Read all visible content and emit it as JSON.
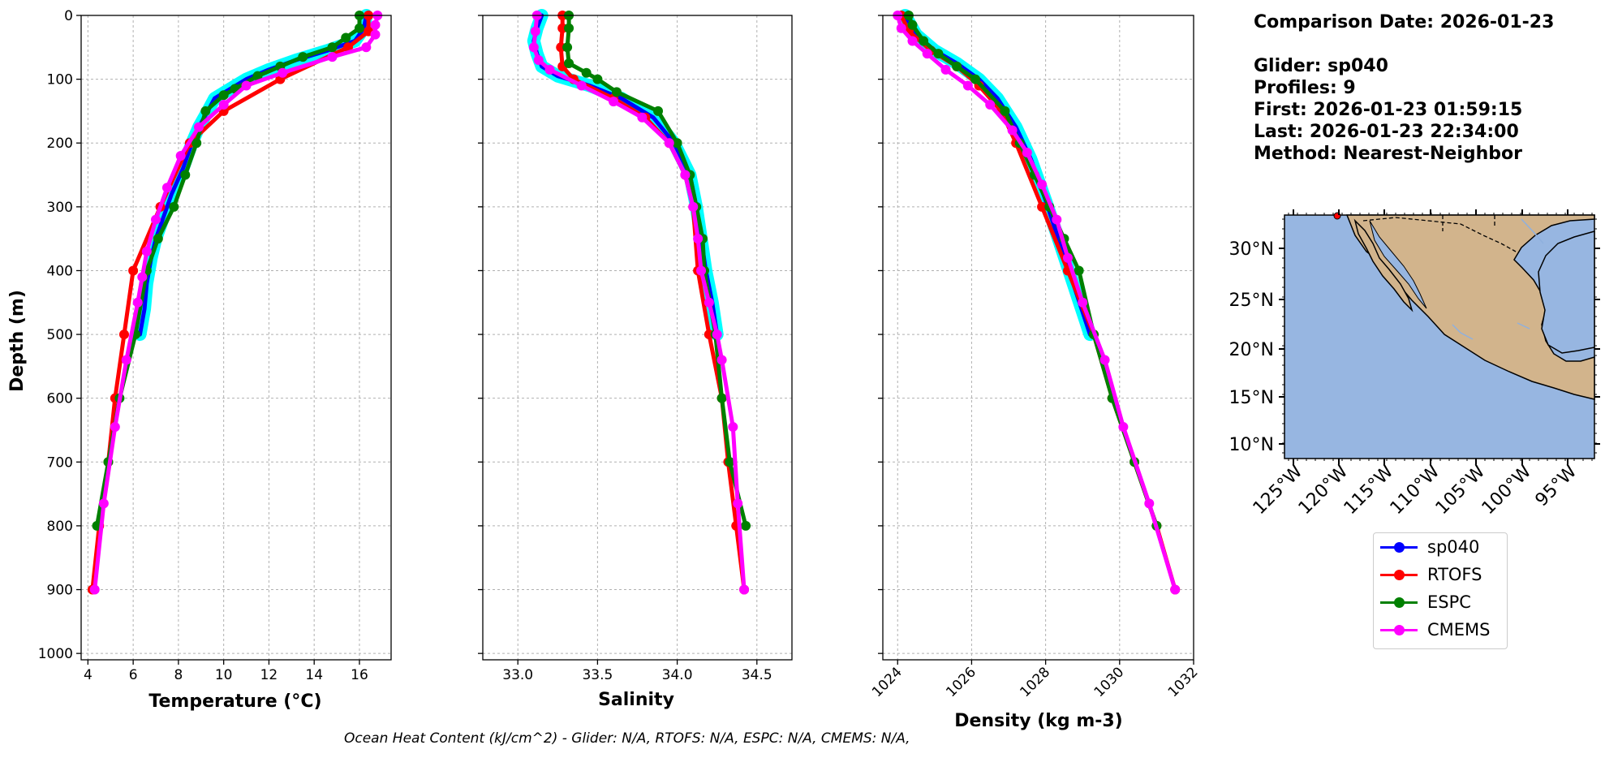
{
  "info": {
    "comparison_date": "Comparison Date: 2026-01-23",
    "glider": "Glider: sp040",
    "profiles": "Profiles: 9",
    "first": "First: 2026-01-23 01:59:15",
    "last": "Last: 2026-01-23 22:34:00",
    "method": "Method: Nearest-Neighbor"
  },
  "footer": "Ocean Heat Content (kJ/cm^2) - Glider: N/A,  RTOFS: N/A,  ESPC: N/A,  CMEMS: N/A,",
  "legend": [
    {
      "name": "sp040",
      "color": "#0000ff"
    },
    {
      "name": "RTOFS",
      "color": "#ff0000"
    },
    {
      "name": "ESPC",
      "color": "#008000"
    },
    {
      "name": "CMEMS",
      "color": "#ff00ff"
    }
  ],
  "map": {
    "lat_ticks": [
      "30°N",
      "25°N",
      "20°N",
      "15°N",
      "10°N"
    ],
    "lon_ticks": [
      "125°W",
      "120°W",
      "115°W",
      "110°W",
      "105°W",
      "100°W",
      "95°W"
    ],
    "ocean_color": "#97b6e1",
    "land_color": "#d2b48c",
    "glider_marker_color": "#ff0000"
  },
  "chart_data": [
    {
      "type": "line",
      "xlabel": "Temperature (°C)",
      "ylabel": "Depth (m)",
      "xlim": [
        3.7,
        17.4
      ],
      "ylim": [
        1010,
        0
      ],
      "xticks": [
        4,
        6,
        8,
        10,
        12,
        14,
        16
      ],
      "yticks": [
        0,
        100,
        200,
        300,
        400,
        500,
        600,
        700,
        800,
        900,
        1000
      ],
      "grid": true,
      "series": [
        {
          "name": "sp040",
          "color": "#0000ff",
          "band_color": "#00ffff",
          "marker": false,
          "points": [
            [
              16.3,
              0
            ],
            [
              16.2,
              20
            ],
            [
              15.8,
              40
            ],
            [
              14.6,
              55
            ],
            [
              13.2,
              70
            ],
            [
              12.0,
              85
            ],
            [
              11.0,
              100
            ],
            [
              10.3,
              115
            ],
            [
              9.6,
              130
            ],
            [
              9.3,
              150
            ],
            [
              8.9,
              175
            ],
            [
              8.6,
              200
            ],
            [
              8.2,
              240
            ],
            [
              7.7,
              280
            ],
            [
              7.3,
              320
            ],
            [
              7.0,
              350
            ],
            [
              6.8,
              380
            ],
            [
              6.6,
              420
            ],
            [
              6.5,
              460
            ],
            [
              6.3,
              500
            ]
          ]
        },
        {
          "name": "RTOFS",
          "color": "#ff0000",
          "marker": true,
          "points": [
            [
              16.4,
              0
            ],
            [
              16.4,
              25
            ],
            [
              15.5,
              50
            ],
            [
              12.5,
              100
            ],
            [
              10.0,
              150
            ],
            [
              8.5,
              200
            ],
            [
              7.2,
              300
            ],
            [
              6.0,
              400
            ],
            [
              5.6,
              500
            ],
            [
              5.2,
              600
            ],
            [
              4.9,
              700
            ],
            [
              4.5,
              800
            ],
            [
              4.2,
              900
            ]
          ]
        },
        {
          "name": "ESPC",
          "color": "#008000",
          "marker": true,
          "points": [
            [
              16.0,
              0
            ],
            [
              16.0,
              20
            ],
            [
              15.4,
              35
            ],
            [
              14.8,
              50
            ],
            [
              13.5,
              65
            ],
            [
              12.5,
              80
            ],
            [
              11.5,
              95
            ],
            [
              10.5,
              115
            ],
            [
              10.0,
              125
            ],
            [
              9.2,
              150
            ],
            [
              8.8,
              200
            ],
            [
              8.3,
              250
            ],
            [
              7.8,
              300
            ],
            [
              7.1,
              350
            ],
            [
              6.6,
              400
            ],
            [
              6.1,
              500
            ],
            [
              5.4,
              600
            ],
            [
              4.9,
              700
            ],
            [
              4.4,
              800
            ]
          ]
        },
        {
          "name": "CMEMS",
          "color": "#ff00ff",
          "marker": true,
          "points": [
            [
              16.8,
              0
            ],
            [
              16.7,
              15
            ],
            [
              16.7,
              30
            ],
            [
              16.3,
              50
            ],
            [
              14.8,
              65
            ],
            [
              12.6,
              90
            ],
            [
              11.0,
              110
            ],
            [
              10.0,
              140
            ],
            [
              8.9,
              175
            ],
            [
              8.1,
              220
            ],
            [
              7.5,
              270
            ],
            [
              7.0,
              320
            ],
            [
              6.6,
              370
            ],
            [
              6.4,
              410
            ],
            [
              6.2,
              450
            ],
            [
              5.7,
              540
            ],
            [
              5.2,
              645
            ],
            [
              4.7,
              765
            ],
            [
              4.3,
              900
            ]
          ]
        }
      ]
    },
    {
      "type": "line",
      "xlabel": "Salinity",
      "xlim": [
        32.78,
        34.72
      ],
      "ylim": [
        1010,
        0
      ],
      "xticks": [
        33.0,
        33.5,
        34.0,
        34.5
      ],
      "xtick_labels": [
        "33.0",
        "33.5",
        "34.0",
        "34.5"
      ],
      "grid": true,
      "series": [
        {
          "name": "sp040",
          "color": "#0000ff",
          "band_color": "#00ffff",
          "marker": false,
          "points": [
            [
              33.15,
              0
            ],
            [
              33.12,
              20
            ],
            [
              33.1,
              40
            ],
            [
              33.12,
              60
            ],
            [
              33.15,
              80
            ],
            [
              33.25,
              95
            ],
            [
              33.45,
              110
            ],
            [
              33.65,
              130
            ],
            [
              33.85,
              160
            ],
            [
              33.98,
              200
            ],
            [
              34.08,
              250
            ],
            [
              34.12,
              300
            ],
            [
              34.15,
              350
            ],
            [
              34.18,
              400
            ],
            [
              34.22,
              450
            ],
            [
              34.25,
              500
            ]
          ]
        },
        {
          "name": "RTOFS",
          "color": "#ff0000",
          "marker": true,
          "points": [
            [
              33.28,
              0
            ],
            [
              33.28,
              20
            ],
            [
              33.27,
              50
            ],
            [
              33.28,
              80
            ],
            [
              33.35,
              100
            ],
            [
              33.6,
              130
            ],
            [
              33.8,
              160
            ],
            [
              33.95,
              200
            ],
            [
              34.05,
              250
            ],
            [
              34.1,
              300
            ],
            [
              34.13,
              400
            ],
            [
              34.2,
              500
            ],
            [
              34.28,
              600
            ],
            [
              34.32,
              700
            ],
            [
              34.37,
              800
            ],
            [
              34.42,
              900
            ]
          ]
        },
        {
          "name": "ESPC",
          "color": "#008000",
          "marker": true,
          "points": [
            [
              33.32,
              0
            ],
            [
              33.32,
              20
            ],
            [
              33.31,
              50
            ],
            [
              33.32,
              75
            ],
            [
              33.43,
              90
            ],
            [
              33.5,
              100
            ],
            [
              33.62,
              120
            ],
            [
              33.88,
              150
            ],
            [
              34.0,
              200
            ],
            [
              34.08,
              250
            ],
            [
              34.12,
              300
            ],
            [
              34.16,
              350
            ],
            [
              34.17,
              400
            ],
            [
              34.24,
              500
            ],
            [
              34.28,
              600
            ],
            [
              34.33,
              700
            ],
            [
              34.43,
              800
            ]
          ]
        },
        {
          "name": "CMEMS",
          "color": "#ff00ff",
          "marker": true,
          "points": [
            [
              33.12,
              0
            ],
            [
              33.11,
              25
            ],
            [
              33.1,
              50
            ],
            [
              33.13,
              70
            ],
            [
              33.2,
              85
            ],
            [
              33.4,
              110
            ],
            [
              33.6,
              135
            ],
            [
              33.78,
              160
            ],
            [
              33.95,
              200
            ],
            [
              34.05,
              250
            ],
            [
              34.1,
              300
            ],
            [
              34.13,
              350
            ],
            [
              34.15,
              400
            ],
            [
              34.2,
              450
            ],
            [
              34.25,
              500
            ],
            [
              34.28,
              540
            ],
            [
              34.35,
              645
            ],
            [
              34.38,
              765
            ],
            [
              34.42,
              900
            ]
          ]
        }
      ]
    },
    {
      "type": "line",
      "xlabel": "Density (kg m-3)",
      "xlim": [
        1023.6,
        1032.0
      ],
      "ylim": [
        1010,
        0
      ],
      "xticks": [
        1024,
        1026,
        1028,
        1030,
        1032
      ],
      "grid": true,
      "series": [
        {
          "name": "sp040",
          "color": "#0000ff",
          "band_color": "#00ffff",
          "marker": false,
          "points": [
            [
              1024.2,
              0
            ],
            [
              1024.5,
              30
            ],
            [
              1025.0,
              55
            ],
            [
              1025.6,
              75
            ],
            [
              1026.2,
              100
            ],
            [
              1026.7,
              130
            ],
            [
              1027.2,
              175
            ],
            [
              1027.6,
              225
            ],
            [
              1028.0,
              290
            ],
            [
              1028.4,
              360
            ],
            [
              1028.8,
              430
            ],
            [
              1029.2,
              500
            ]
          ]
        },
        {
          "name": "RTOFS",
          "color": "#ff0000",
          "marker": true,
          "points": [
            [
              1024.1,
              0
            ],
            [
              1024.3,
              25
            ],
            [
              1024.9,
              55
            ],
            [
              1025.6,
              80
            ],
            [
              1026.2,
              110
            ],
            [
              1026.8,
              150
            ],
            [
              1027.2,
              200
            ],
            [
              1027.9,
              300
            ],
            [
              1028.6,
              400
            ],
            [
              1029.3,
              500
            ],
            [
              1029.8,
              600
            ],
            [
              1030.4,
              700
            ],
            [
              1031.0,
              800
            ],
            [
              1031.5,
              900
            ]
          ]
        },
        {
          "name": "ESPC",
          "color": "#008000",
          "marker": true,
          "points": [
            [
              1024.3,
              0
            ],
            [
              1024.4,
              15
            ],
            [
              1024.7,
              40
            ],
            [
              1025.1,
              60
            ],
            [
              1025.6,
              80
            ],
            [
              1026.1,
              100
            ],
            [
              1026.9,
              150
            ],
            [
              1027.3,
              200
            ],
            [
              1027.7,
              250
            ],
            [
              1028.1,
              300
            ],
            [
              1028.5,
              350
            ],
            [
              1028.9,
              400
            ],
            [
              1029.3,
              500
            ],
            [
              1029.8,
              600
            ],
            [
              1030.4,
              700
            ],
            [
              1031.0,
              800
            ]
          ]
        },
        {
          "name": "CMEMS",
          "color": "#ff00ff",
          "marker": true,
          "points": [
            [
              1024.0,
              0
            ],
            [
              1024.1,
              20
            ],
            [
              1024.4,
              40
            ],
            [
              1024.8,
              60
            ],
            [
              1025.3,
              85
            ],
            [
              1025.9,
              110
            ],
            [
              1026.5,
              140
            ],
            [
              1027.1,
              180
            ],
            [
              1027.5,
              215
            ],
            [
              1027.9,
              265
            ],
            [
              1028.3,
              320
            ],
            [
              1028.6,
              380
            ],
            [
              1029.0,
              450
            ],
            [
              1029.6,
              540
            ],
            [
              1030.1,
              645
            ],
            [
              1030.8,
              765
            ],
            [
              1031.5,
              900
            ]
          ]
        }
      ]
    }
  ]
}
